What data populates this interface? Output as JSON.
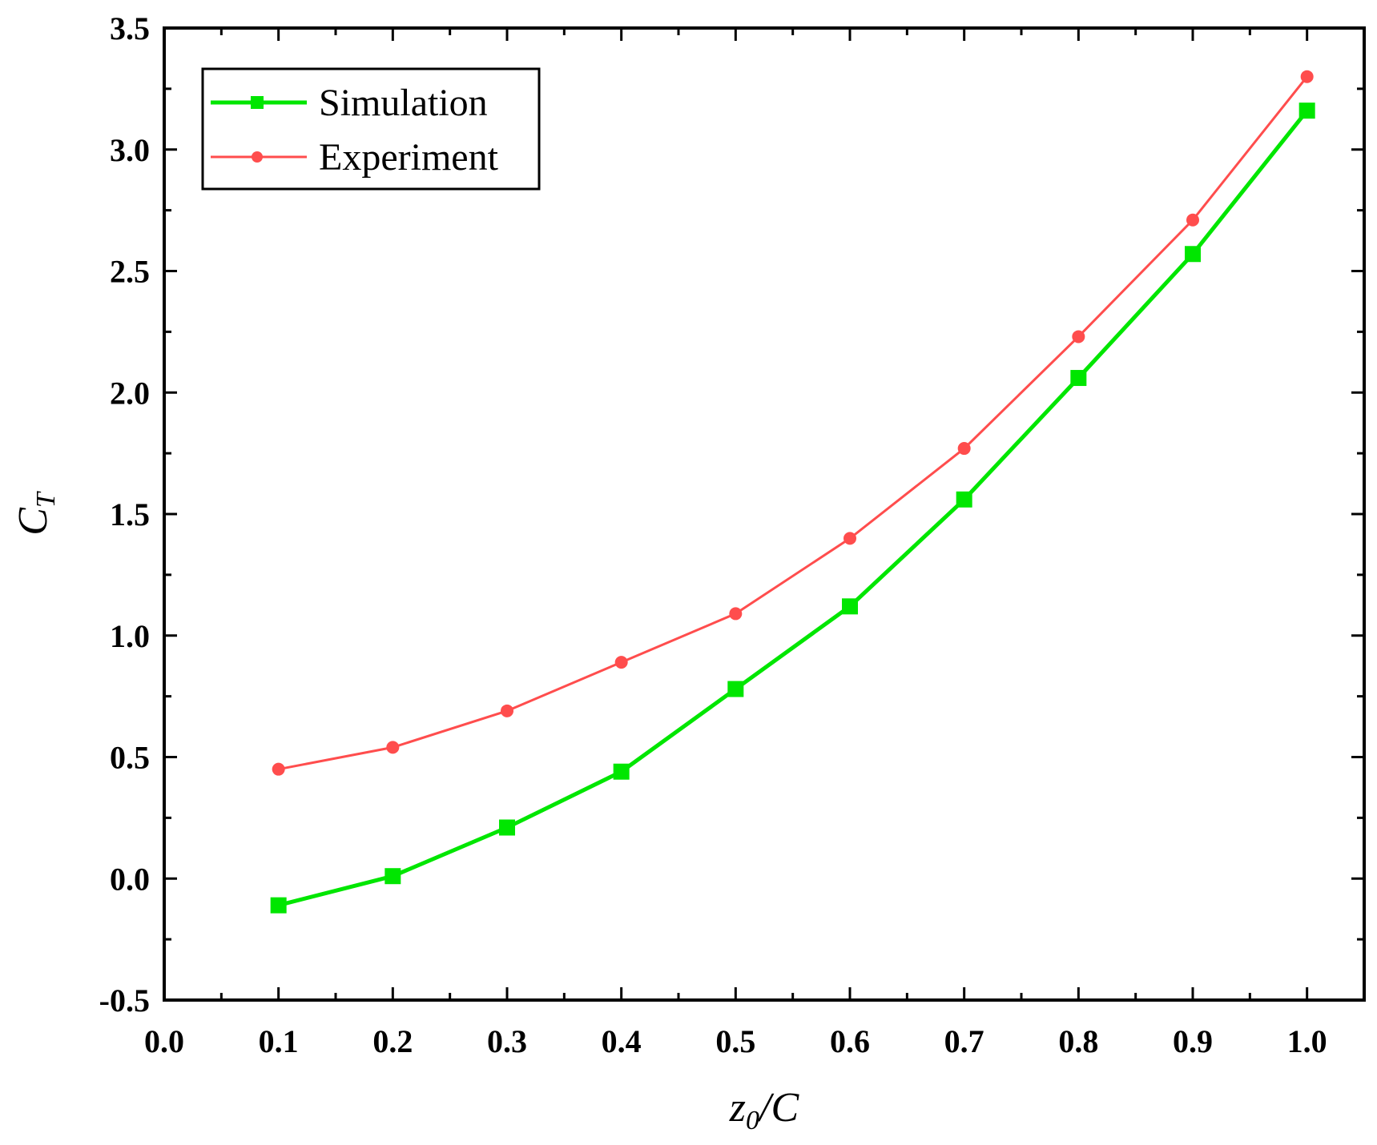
{
  "chart_data": {
    "type": "line",
    "xlabel": {
      "main": "z",
      "sub": "0",
      "rest": "/C"
    },
    "ylabel": {
      "main": "C",
      "sub": "T"
    },
    "xlim": [
      0.0,
      1.05
    ],
    "ylim": [
      -0.5,
      3.5
    ],
    "x_ticks": [
      0.0,
      0.1,
      0.2,
      0.3,
      0.4,
      0.5,
      0.6,
      0.7,
      0.8,
      0.9,
      1.0
    ],
    "x_tick_labels": [
      "0.0",
      "0.1",
      "0.2",
      "0.3",
      "0.4",
      "0.5",
      "0.6",
      "0.7",
      "0.8",
      "0.9",
      "1.0"
    ],
    "y_ticks": [
      -0.5,
      0.0,
      0.5,
      1.0,
      1.5,
      2.0,
      2.5,
      3.0,
      3.5
    ],
    "y_tick_labels": [
      "-0.5",
      "0.0",
      "0.5",
      "1.0",
      "1.5",
      "2.0",
      "2.5",
      "3.0",
      "3.5"
    ],
    "grid": false,
    "legend_position": "top-left",
    "x": [
      0.1,
      0.2,
      0.3,
      0.4,
      0.5,
      0.6,
      0.7,
      0.8,
      0.9,
      1.0
    ],
    "series": [
      {
        "name": "Simulation",
        "color": "#00e600",
        "marker": "square",
        "values": [
          -0.11,
          0.01,
          0.21,
          0.44,
          0.78,
          1.12,
          1.56,
          2.06,
          2.57,
          3.16
        ]
      },
      {
        "name": "Experiment",
        "color": "#ff4d4d",
        "marker": "circle",
        "values": [
          0.45,
          0.54,
          0.69,
          0.89,
          1.09,
          1.4,
          1.77,
          2.23,
          2.71,
          3.3
        ]
      }
    ]
  }
}
